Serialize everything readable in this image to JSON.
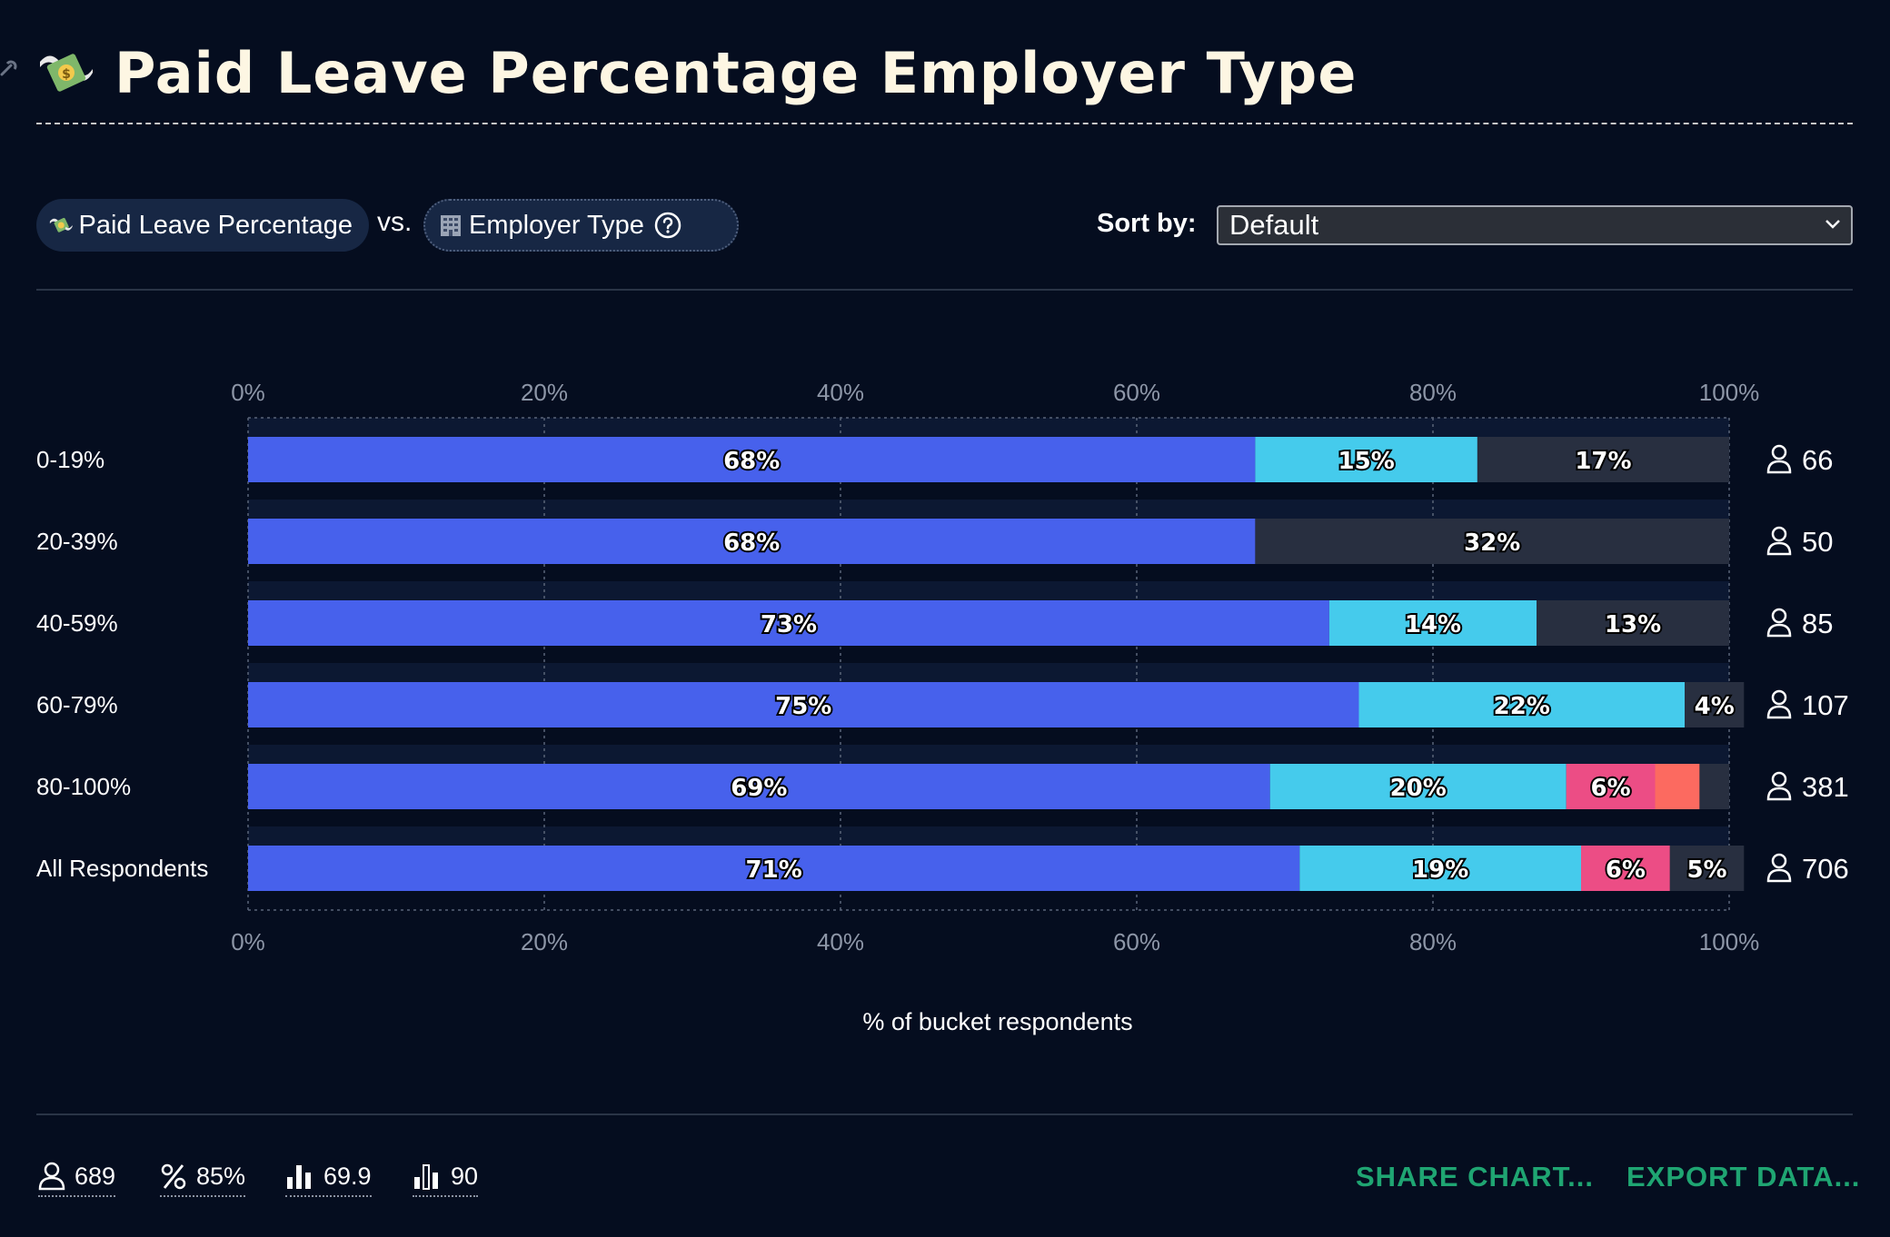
{
  "page": {
    "title": "Paid Leave Percentage Employer Type",
    "title_icon": "money-with-wings-icon"
  },
  "controls": {
    "x_variable": "Paid Leave Percentage",
    "x_variable_icon": "money-with-wings-icon",
    "vs_label": "vs.",
    "y_variable": "Employer Type",
    "y_variable_icon": "office-building-icon",
    "sort_label": "Sort by:",
    "sort_value": "Default"
  },
  "chart_data": {
    "type": "bar",
    "orientation": "horizontal",
    "stacked": true,
    "categories": [
      "0-19%",
      "20-39%",
      "40-59%",
      "60-79%",
      "80-100%",
      "All Respondents"
    ],
    "series": [
      {
        "color": "#4761ec",
        "values": [
          68,
          68,
          73,
          75,
          69,
          71
        ]
      },
      {
        "color": "#45cbec",
        "values": [
          15,
          0,
          14,
          22,
          20,
          19
        ]
      },
      {
        "color": "#ec4d85",
        "values": [
          0,
          0,
          0,
          0,
          6,
          6
        ]
      },
      {
        "color": "#fc6a60",
        "values": [
          0,
          0,
          0,
          0,
          3,
          0
        ]
      },
      {
        "color": "#282f40",
        "values": [
          17,
          32,
          13,
          4,
          2,
          5
        ]
      }
    ],
    "data_labels": [
      [
        "68%",
        "15%",
        "",
        "",
        "17%"
      ],
      [
        "68%",
        "",
        "",
        "",
        "32%"
      ],
      [
        "73%",
        "14%",
        "",
        "",
        "13%"
      ],
      [
        "75%",
        "22%",
        "",
        "",
        "4%"
      ],
      [
        "69%",
        "20%",
        "6%",
        "",
        ""
      ],
      [
        "71%",
        "19%",
        "6%",
        "",
        "5%"
      ]
    ],
    "respondents": [
      66,
      50,
      85,
      107,
      381,
      706
    ],
    "xlim": [
      0,
      100
    ],
    "x_ticks": [
      "0%",
      "20%",
      "40%",
      "60%",
      "80%",
      "100%"
    ],
    "xlabel": "% of bucket respondents",
    "grid": true
  },
  "footer": {
    "stats": [
      {
        "icon": "person-icon",
        "value": "689"
      },
      {
        "icon": "percent-icon",
        "value": "85%"
      },
      {
        "icon": "mean-bars-icon",
        "value": "69.9"
      },
      {
        "icon": "median-bars-icon",
        "value": "90"
      }
    ],
    "share_label": "SHARE CHART...",
    "export_label": "EXPORT DATA..."
  }
}
